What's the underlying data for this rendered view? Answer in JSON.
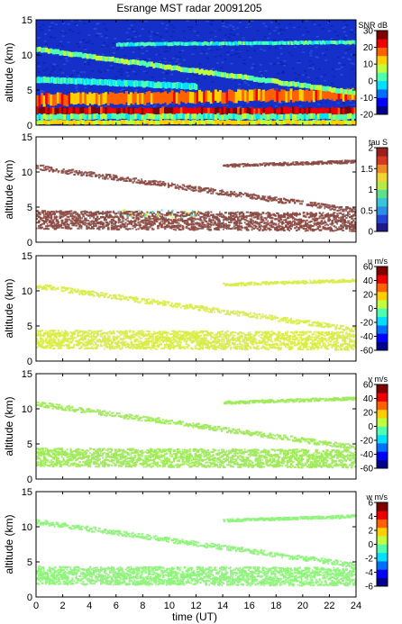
{
  "chart_data": {
    "type": "heatmap",
    "title": "Esrange MST radar 20091205",
    "xlabel": "time (UT)",
    "xlim": [
      0,
      24
    ],
    "xticks": [
      0,
      2,
      4,
      6,
      8,
      10,
      12,
      14,
      16,
      18,
      20,
      22,
      24
    ],
    "panels": [
      {
        "id": "snr",
        "ylabel": "altitude (km)",
        "ylim": [
          0,
          15
        ],
        "yticks": [
          0,
          5,
          10,
          15
        ],
        "colorbar": {
          "label": "SNR dB",
          "range": [
            -20,
            30
          ],
          "ticks": [
            -20,
            -10,
            0,
            10,
            20,
            30
          ]
        },
        "features": [
          {
            "t0": 0,
            "t1": 24,
            "h0": 2.0,
            "h1": 2.0,
            "thickness": 1.0,
            "level": 0.92
          },
          {
            "t0": 0,
            "t1": 24,
            "h0": 3.6,
            "h1": 4.4,
            "thickness": 1.6,
            "level": 0.75
          },
          {
            "t0": 0,
            "t1": 24,
            "h0": 1.2,
            "h1": 1.2,
            "thickness": 0.8,
            "level": 0.45
          },
          {
            "t0": 0,
            "t1": 24,
            "h0": 0.4,
            "h1": 0.4,
            "thickness": 0.6,
            "level": 0.62
          },
          {
            "t0": 0,
            "t1": 24,
            "h0": 10.8,
            "h1": 4.6,
            "thickness": 0.7,
            "level": 0.5
          },
          {
            "t0": 6,
            "t1": 24,
            "h0": 11.5,
            "h1": 11.8,
            "thickness": 0.5,
            "level": 0.42
          },
          {
            "t0": 0,
            "t1": 12,
            "h0": 6.5,
            "h1": 5.5,
            "thickness": 0.8,
            "level": 0.4
          }
        ]
      },
      {
        "id": "tau",
        "ylabel": "altitude (km)",
        "ylim": [
          0,
          15
        ],
        "yticks": [
          0,
          5,
          10,
          15
        ],
        "colorbar": {
          "label": "tau S",
          "range": [
            0,
            2
          ],
          "ticks": [
            0,
            0.5,
            1,
            1.5,
            2
          ]
        },
        "features": [
          {
            "t0": 0,
            "t1": 24,
            "h0": 3.3,
            "h1": 3.0,
            "thickness": 2.6,
            "level": 0.6
          },
          {
            "t0": 0,
            "t1": 24,
            "h0": 10.8,
            "h1": 4.6,
            "thickness": 0.7,
            "level": 0.6
          },
          {
            "t0": 14,
            "t1": 24,
            "h0": 11.0,
            "h1": 11.6,
            "thickness": 0.4,
            "level": 0.6
          }
        ]
      },
      {
        "id": "u",
        "ylabel": "altitude (km)",
        "ylim": [
          0,
          15
        ],
        "yticks": [
          0,
          5,
          10,
          15
        ],
        "colorbar": {
          "label": "u m/s",
          "range": [
            -60,
            60
          ],
          "ticks": [
            -60,
            -40,
            -20,
            0,
            20,
            40,
            60
          ]
        },
        "features": [
          {
            "t0": 0,
            "t1": 24,
            "h0": 3.2,
            "h1": 3.0,
            "thickness": 2.6,
            "level": 0.6
          },
          {
            "t0": 0,
            "t1": 24,
            "h0": 10.8,
            "h1": 4.6,
            "thickness": 0.7,
            "level": 0.6
          },
          {
            "t0": 14,
            "t1": 24,
            "h0": 11.0,
            "h1": 11.6,
            "thickness": 0.4,
            "level": 0.6
          }
        ]
      },
      {
        "id": "v",
        "ylabel": "altitude (km)",
        "ylim": [
          0,
          15
        ],
        "yticks": [
          0,
          5,
          10,
          15
        ],
        "colorbar": {
          "label": "v m/s",
          "range": [
            -60,
            60
          ],
          "ticks": [
            -60,
            -40,
            -20,
            0,
            20,
            40,
            60
          ]
        },
        "features": [
          {
            "t0": 0,
            "t1": 24,
            "h0": 3.2,
            "h1": 3.0,
            "thickness": 2.6,
            "level": 0.6
          },
          {
            "t0": 0,
            "t1": 24,
            "h0": 10.8,
            "h1": 4.6,
            "thickness": 0.7,
            "level": 0.55
          },
          {
            "t0": 14,
            "t1": 24,
            "h0": 11.0,
            "h1": 11.6,
            "thickness": 0.4,
            "level": 0.55
          }
        ]
      },
      {
        "id": "w",
        "ylabel": "altitude (km)",
        "ylim": [
          0,
          15
        ],
        "yticks": [
          0,
          5,
          10,
          15
        ],
        "colorbar": {
          "label": "w m/s",
          "range": [
            -6,
            6
          ],
          "ticks": [
            -6,
            -4,
            -2,
            0,
            2,
            4,
            6
          ]
        },
        "features": [
          {
            "t0": 0,
            "t1": 24,
            "h0": 3.2,
            "h1": 3.0,
            "thickness": 2.6,
            "level": 0.6
          },
          {
            "t0": 0,
            "t1": 24,
            "h0": 10.8,
            "h1": 4.6,
            "thickness": 0.7,
            "level": 0.6
          },
          {
            "t0": 14,
            "t1": 24,
            "h0": 11.0,
            "h1": 11.6,
            "thickness": 0.4,
            "level": 0.6
          }
        ]
      }
    ]
  },
  "colors": {
    "jet": [
      "#00008f",
      "#0000ff",
      "#006fff",
      "#00dfff",
      "#4fffaf",
      "#bfff3f",
      "#ffcf00",
      "#ff6000",
      "#ef0000",
      "#800000"
    ],
    "tau_map": [
      "#1d1a8c",
      "#2444d6",
      "#2b8fe8",
      "#36c6d8",
      "#5ee08c",
      "#b7e94b",
      "#f2d62f",
      "#f08a25",
      "#d63821",
      "#9b1f1f"
    ],
    "tau_main": "#8b4a44",
    "u_main": "#d8ec4a",
    "v_main": "#9eea5a",
    "w_main": "#8ef47a",
    "snr_bg": "#1530c8"
  }
}
